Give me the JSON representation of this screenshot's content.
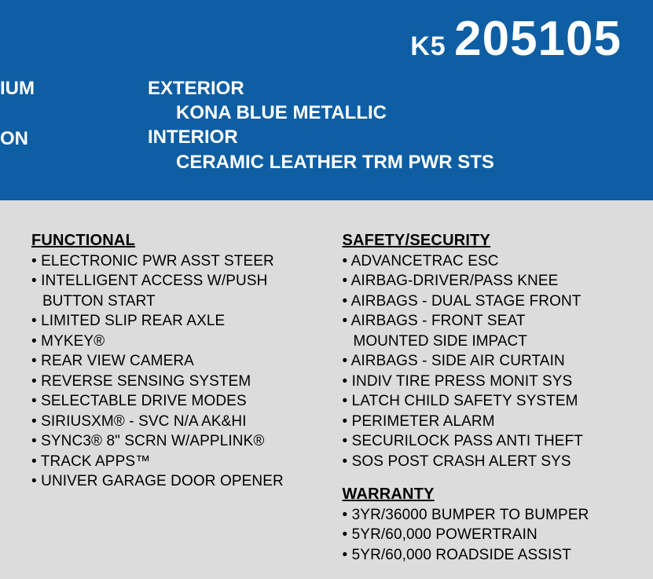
{
  "header": {
    "code_small": "K5",
    "code_large": "205105",
    "left_frag_1": "IUM",
    "left_frag_2": "ON",
    "exterior_label": "EXTERIOR",
    "exterior_value": "KONA BLUE METALLIC",
    "interior_label": "INTERIOR",
    "interior_value": "CERAMIC LEATHER TRM PWR STS",
    "bg_color": "#0e5ea3",
    "text_color": "#ffffff"
  },
  "content": {
    "bg_color": "#dcdcdc",
    "text_color": "#000000"
  },
  "sections": {
    "functional": {
      "title": "FUNCTIONAL",
      "items": [
        "ELECTRONIC PWR ASST STEER",
        "INTELLIGENT ACCESS W/PUSH BUTTON START",
        "LIMITED SLIP REAR AXLE",
        "MYKEY®",
        "REAR VIEW CAMERA",
        "REVERSE SENSING SYSTEM",
        "SELECTABLE DRIVE MODES",
        "SIRIUSXM® - SVC N/A AK&HI",
        "SYNC3® 8\" SCRN W/APPLINK®",
        "TRACK APPS™",
        "UNIVER GARAGE DOOR OPENER"
      ]
    },
    "safety": {
      "title": "SAFETY/SECURITY",
      "items": [
        "ADVANCETRAC ESC",
        "AIRBAG-DRIVER/PASS KNEE",
        "AIRBAGS - DUAL STAGE FRONT",
        "AIRBAGS - FRONT SEAT MOUNTED SIDE IMPACT",
        "AIRBAGS - SIDE AIR CURTAIN",
        "INDIV TIRE PRESS MONIT SYS",
        "LATCH CHILD SAFETY SYSTEM",
        "PERIMETER ALARM",
        "SECURILOCK PASS ANTI THEFT",
        "SOS POST CRASH ALERT SYS"
      ]
    },
    "warranty": {
      "title": "WARRANTY",
      "items": [
        "3YR/36000 BUMPER TO BUMPER",
        "5YR/60,000 POWERTRAIN",
        "5YR/60,000 ROADSIDE ASSIST"
      ]
    }
  }
}
